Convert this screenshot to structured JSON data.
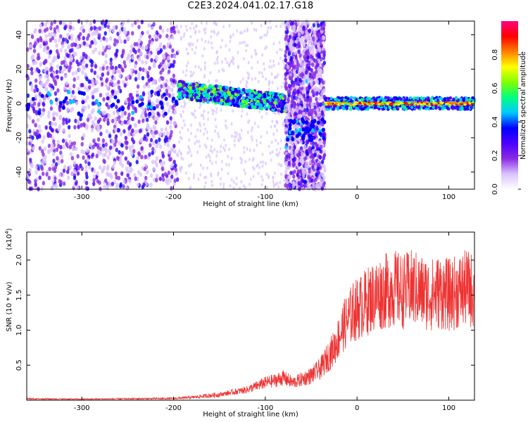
{
  "title": "C2E3.2024.041.02.17.G18",
  "chart_data": [
    {
      "type": "heatmap",
      "xlabel": "Height of straight line (km)",
      "ylabel": "Frequency (Hz)",
      "xlim": [
        -360,
        128
      ],
      "ylim": [
        -50,
        48
      ],
      "xticks": [
        -300,
        -200,
        -100,
        0,
        100
      ],
      "yticks": [
        -40,
        -20,
        0,
        20,
        40
      ],
      "colorbar": {
        "label": "Normalized spectral amplitude",
        "range": [
          0,
          1
        ],
        "ticks": [
          "0.0",
          "0.2",
          "0.4",
          "0.6",
          "0.8"
        ],
        "colormap": [
          "#ffffff",
          "#d9c3ff",
          "#8a2be2",
          "#4b00ff",
          "#0000ff",
          "#00c8ff",
          "#00ff80",
          "#80ff00",
          "#ffff00",
          "#ff8000",
          "#ff0000",
          "#ff0080"
        ]
      },
      "regions": [
        {
          "x": [
            -360,
            -195
          ],
          "pattern": "noise-dense",
          "center_freq": 0
        },
        {
          "x": [
            -195,
            -78
          ],
          "pattern": "signal-band",
          "center_freq": [
            8,
            0
          ],
          "peak_amplitude": 0.45
        },
        {
          "x": [
            -78,
            -35
          ],
          "pattern": "noise-dense",
          "center_freq": -15
        },
        {
          "x": [
            -35,
            128
          ],
          "pattern": "signal-line",
          "center_freq": 0,
          "peak_amplitude": 0.9
        }
      ],
      "grid": false
    },
    {
      "type": "line",
      "xlabel": "Height of straight line (km)",
      "ylabel": "SNR (10 * v/v)",
      "yscale_label": "(x10",
      "yscale_exp": "4",
      "yscale_suffix": ")",
      "xlim": [
        -360,
        128
      ],
      "ylim": [
        0,
        24000
      ],
      "xticks": [
        -300,
        -200,
        -100,
        0,
        100
      ],
      "yticks": [
        5000,
        10000,
        15000,
        20000
      ],
      "ytick_labels": [
        "0.5",
        "1.0",
        "1.5",
        "2.0"
      ],
      "series": [
        {
          "color": "#ee3333",
          "x": [
            -360,
            -300,
            -250,
            -200,
            -180,
            -150,
            -120,
            -100,
            -90,
            -80,
            -70,
            -60,
            -50,
            -45,
            -40,
            -35,
            -30,
            -25,
            -20,
            -15,
            -10,
            -5,
            0,
            10,
            20,
            30,
            40,
            50,
            60,
            70,
            80,
            90,
            100,
            110,
            120,
            128
          ],
          "y": [
            200,
            150,
            200,
            250,
            400,
            800,
            1500,
            2500,
            2800,
            3200,
            2500,
            3000,
            3500,
            4000,
            4500,
            5500,
            6500,
            7500,
            9000,
            10500,
            11500,
            12500,
            13000,
            14000,
            15000,
            15500,
            16000,
            15500,
            16000,
            15500,
            15000,
            15500,
            15000,
            15500,
            16000,
            15500
          ]
        }
      ],
      "grid": false
    }
  ]
}
